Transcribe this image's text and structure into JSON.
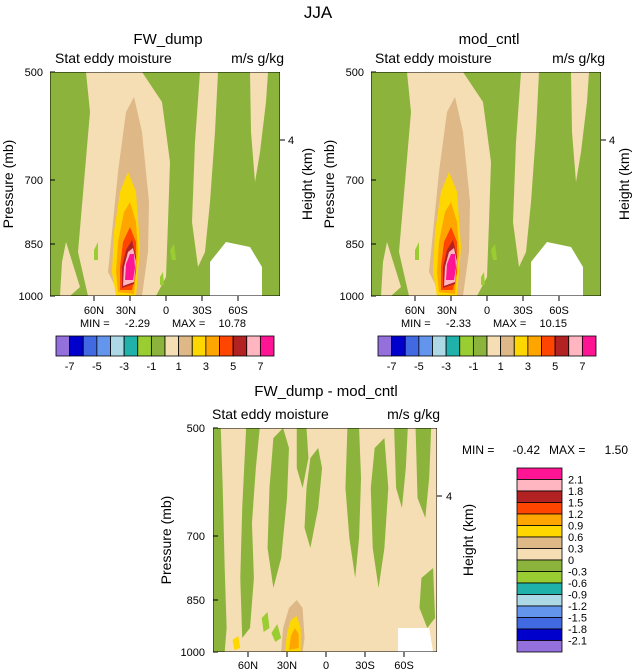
{
  "figure_title": "JJA",
  "chart_data": [
    {
      "type": "contour",
      "title": "FW_dump",
      "subtitle": "Stat eddy moisture",
      "units": "m/s g/kg",
      "ylabel": "Pressure (mb)",
      "ylabel_right": "Height (km)",
      "yticks": [
        "500",
        "700",
        "850",
        "1000"
      ],
      "ytick_values": [
        500,
        700,
        850,
        1000
      ],
      "height_ticks": [
        "4"
      ],
      "xticks": [
        "60N",
        "30N",
        "0",
        "30S",
        "60S"
      ],
      "xtick_values": [
        60,
        30,
        0,
        -30,
        -60
      ],
      "xlim": [
        90,
        -90
      ],
      "ylim": [
        500,
        1000
      ],
      "min_label": "MIN =",
      "min": "-2.29",
      "max_label": "MAX =",
      "max": "10.78"
    },
    {
      "type": "contour",
      "title": "mod_cntl",
      "subtitle": "Stat eddy moisture",
      "units": "m/s g/kg",
      "ylabel": "Pressure (mb)",
      "ylabel_right": "Height (km)",
      "yticks": [
        "500",
        "700",
        "850",
        "1000"
      ],
      "ytick_values": [
        500,
        700,
        850,
        1000
      ],
      "height_ticks": [
        "4"
      ],
      "xticks": [
        "60N",
        "30N",
        "0",
        "30S",
        "60S"
      ],
      "xtick_values": [
        60,
        30,
        0,
        -30,
        -60
      ],
      "xlim": [
        90,
        -90
      ],
      "ylim": [
        500,
        1000
      ],
      "min_label": "MIN =",
      "min": "-2.33",
      "max_label": "MAX =",
      "max": "10.15"
    },
    {
      "type": "contour",
      "title": "FW_dump - mod_cntl",
      "subtitle": "Stat eddy moisture",
      "units": "m/s g/kg",
      "ylabel": "Pressure (mb)",
      "ylabel_right": "Height (km)",
      "yticks": [
        "500",
        "700",
        "850",
        "1000"
      ],
      "ytick_values": [
        500,
        700,
        850,
        1000
      ],
      "height_ticks": [
        "4"
      ],
      "xticks": [
        "60N",
        "30N",
        "0",
        "30S",
        "60S"
      ],
      "xtick_values": [
        60,
        30,
        0,
        -30,
        -60
      ],
      "xlim": [
        90,
        -90
      ],
      "ylim": [
        500,
        1000
      ],
      "min_label": "MIN =",
      "min": "-0.42",
      "max_label": "MAX =",
      "max": "1.50"
    }
  ],
  "colorbar_top": {
    "labels": [
      "-7",
      "-5",
      "-3",
      "-1",
      "1",
      "3",
      "5",
      "7"
    ],
    "colors": [
      "#9370db",
      "#0000cd",
      "#4169e1",
      "#6495ed",
      "#add8e6",
      "#20b2aa",
      "#9acd32",
      "#8cb43c",
      "#f5deb3",
      "#deb887",
      "#ffd700",
      "#ffa500",
      "#ff4500",
      "#b22222",
      "#ffb6c1",
      "#ff1493"
    ]
  },
  "colorbar_diff": {
    "labels": [
      "2.1",
      "1.8",
      "1.5",
      "1.2",
      "0.9",
      "0.6",
      "0.3",
      "0",
      "-0.3",
      "-0.6",
      "-0.9",
      "-1.2",
      "-1.5",
      "-1.8",
      "-2.1"
    ],
    "colors": [
      "#ff1493",
      "#ffb6c1",
      "#b22222",
      "#ff4500",
      "#ffa500",
      "#ffd700",
      "#deb887",
      "#f5deb3",
      "#8cb43c",
      "#9acd32",
      "#20b2aa",
      "#add8e6",
      "#6495ed",
      "#4169e1",
      "#0000cd",
      "#9370db"
    ]
  },
  "palette": {
    "green": "#8cb43c",
    "light_green": "#9acd32",
    "wheat": "#f5deb3",
    "tan": "#deb887",
    "gold": "#ffd700",
    "orange": "#ffa500",
    "red_orange": "#ff4500",
    "firebrick": "#b22222",
    "pink": "#ffb6c1",
    "deep_pink": "#ff1493"
  }
}
